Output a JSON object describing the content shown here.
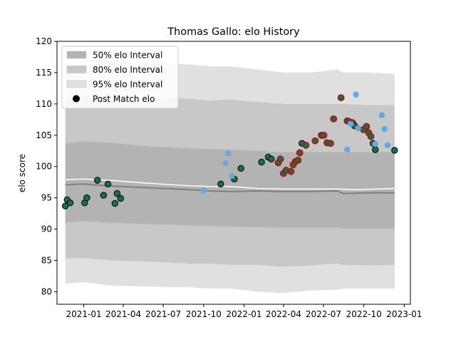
{
  "chart_data": {
    "type": "scatter",
    "title": "Thomas Gallo: elo History",
    "xlabel": "",
    "ylabel": "elo score",
    "xlim": [
      "2020-11-01",
      "2023-01-15"
    ],
    "ylim": [
      78,
      120
    ],
    "x_ticks": [
      "2021-01",
      "2021-04",
      "2021-07",
      "2021-10",
      "2022-01",
      "2022-04",
      "2022-07",
      "2022-10",
      "2023-01"
    ],
    "y_ticks": [
      80,
      85,
      90,
      95,
      100,
      105,
      110,
      115,
      120
    ],
    "legend": {
      "position": "top-left",
      "entries": [
        {
          "label": "50% elo Interval",
          "color": "#b3b3b3"
        },
        {
          "label": "80% elo Interval",
          "color": "#c8c8c8"
        },
        {
          "label": "95% elo Interval",
          "color": "#e0e0e0"
        },
        {
          "label": "Post Match elo",
          "color": "#000000"
        }
      ]
    },
    "band_x": [
      "2020-11-20",
      "2021-01-01",
      "2021-03-01",
      "2021-06-01",
      "2021-09-01",
      "2021-10-15",
      "2021-12-01",
      "2022-02-01",
      "2022-04-01",
      "2022-06-01",
      "2022-08-01",
      "2022-08-15",
      "2022-10-15",
      "2022-12-10"
    ],
    "bands": [
      {
        "name": "95% elo Interval",
        "color": "#e0e0e0",
        "upper": [
          114.8,
          117.0,
          117.2,
          116.5,
          116.3,
          116.0,
          116.0,
          115.5,
          115.0,
          115.0,
          115.5,
          115.0,
          115.0,
          114.8
        ],
        "lower": [
          81.3,
          81.5,
          81.0,
          80.8,
          80.7,
          80.5,
          80.5,
          80.0,
          79.8,
          80.2,
          80.3,
          80.5,
          80.5,
          80.5
        ]
      },
      {
        "name": "80% elo Interval",
        "color": "#c8c8c8",
        "upper": [
          110.5,
          111.3,
          111.0,
          111.0,
          110.8,
          110.5,
          110.7,
          110.3,
          110.0,
          110.0,
          110.0,
          110.0,
          109.8,
          109.8
        ],
        "lower": [
          85.3,
          85.4,
          85.0,
          84.8,
          84.5,
          84.5,
          84.3,
          84.3,
          84.0,
          84.2,
          84.5,
          84.3,
          84.2,
          84.3
        ]
      },
      {
        "name": "50% elo Interval",
        "color": "#b3b3b3",
        "upper": [
          103.7,
          104.0,
          103.8,
          103.2,
          102.9,
          102.8,
          102.7,
          102.5,
          102.3,
          102.3,
          102.3,
          102.3,
          102.3,
          102.3
        ],
        "lower": [
          91.0,
          91.3,
          91.0,
          90.8,
          90.6,
          90.5,
          90.4,
          90.3,
          90.2,
          90.2,
          90.2,
          90.1,
          90.1,
          90.1
        ]
      }
    ],
    "mean_line": {
      "x": [
        "2020-11-20",
        "2021-01-01",
        "2021-03-01",
        "2021-06-01",
        "2021-09-01",
        "2021-10-15",
        "2021-12-01",
        "2022-02-01",
        "2022-04-01",
        "2022-06-01",
        "2022-08-01",
        "2022-08-15",
        "2022-10-15",
        "2022-12-10"
      ],
      "y": [
        97.1,
        97.2,
        96.9,
        96.6,
        96.3,
        96.1,
        96.0,
        96.1,
        96.0,
        96.0,
        96.1,
        95.7,
        95.8,
        95.8
      ],
      "color": "#808080"
    },
    "expected_line": {
      "x": [
        "2020-11-20",
        "2021-01-01",
        "2021-03-01",
        "2021-06-01",
        "2021-09-01",
        "2021-10-15",
        "2021-12-01",
        "2022-02-01",
        "2022-04-01",
        "2022-06-01",
        "2022-08-01",
        "2022-09-15",
        "2022-12-10"
      ],
      "y": [
        97.9,
        98.0,
        97.8,
        97.3,
        96.9,
        96.8,
        96.8,
        96.5,
        96.4,
        96.4,
        96.4,
        96.3,
        96.5
      ],
      "color": "#ffffff"
    },
    "series": [
      {
        "name": "Post Match elo",
        "color": "#1a6e4e",
        "edge": "#000000",
        "x": [
          "2020-11-20",
          "2020-11-24",
          "2020-12-01",
          "2021-01-03",
          "2021-01-08",
          "2021-02-01",
          "2021-02-15",
          "2021-02-25",
          "2021-03-13",
          "2021-03-18",
          "2021-03-26",
          "2021-11-09",
          "2021-12-10",
          "2021-12-25",
          "2022-02-10",
          "2022-02-25",
          "2022-03-04",
          "2022-03-20",
          "2022-03-25",
          "2022-04-01",
          "2022-04-07",
          "2022-04-18",
          "2022-04-23",
          "2022-04-28",
          "2022-05-04",
          "2022-05-08",
          "2022-05-13",
          "2022-05-22",
          "2022-06-12",
          "2022-06-26",
          "2022-07-02",
          "2022-07-09",
          "2022-07-17",
          "2022-07-24",
          "2022-08-10",
          "2022-08-24",
          "2022-08-28",
          "2022-09-05",
          "2022-09-10",
          "2022-09-30",
          "2022-10-07",
          "2022-10-12",
          "2022-10-17",
          "2022-10-22",
          "2022-10-27",
          "2022-12-10"
        ],
        "y": [
          93.7,
          94.7,
          94.2,
          94.2,
          95.0,
          97.8,
          95.4,
          97.2,
          94.1,
          95.7,
          94.9,
          97.2,
          98.0,
          99.7,
          100.7,
          101.5,
          101.2,
          100.6,
          101.2,
          98.9,
          99.4,
          99.2,
          100.3,
          100.8,
          101.0,
          102.2,
          103.7,
          103.4,
          104.1,
          105.0,
          105.0,
          103.8,
          103.7,
          107.6,
          111.0,
          107.3,
          107.2,
          107.0,
          106.5,
          105.9,
          106.4,
          105.4,
          104.8,
          103.7,
          102.7,
          102.6
        ],
        "highlighted": [
          false,
          false,
          false,
          false,
          false,
          false,
          false,
          false,
          false,
          false,
          false,
          false,
          false,
          false,
          false,
          false,
          false,
          true,
          true,
          true,
          true,
          true,
          true,
          true,
          true,
          true,
          false,
          true,
          true,
          true,
          true,
          true,
          true,
          true,
          true,
          true,
          true,
          true,
          false,
          true,
          true,
          true,
          true,
          false,
          false,
          false
        ]
      },
      {
        "name": "",
        "color": "#6aa6e0",
        "x": [
          "2021-10-01",
          "2021-11-20",
          "2021-11-26",
          "2021-12-04",
          "2022-08-24",
          "2022-09-01",
          "2022-09-13",
          "2022-09-18",
          "2022-10-27",
          "2022-11-11",
          "2022-11-17",
          "2022-11-24"
        ],
        "y": [
          96.2,
          100.5,
          102.1,
          98.5,
          102.7,
          106.8,
          111.5,
          106.1,
          103.6,
          108.2,
          106.0,
          103.4
        ]
      }
    ],
    "highlight_edge_color": "#cc0000"
  }
}
